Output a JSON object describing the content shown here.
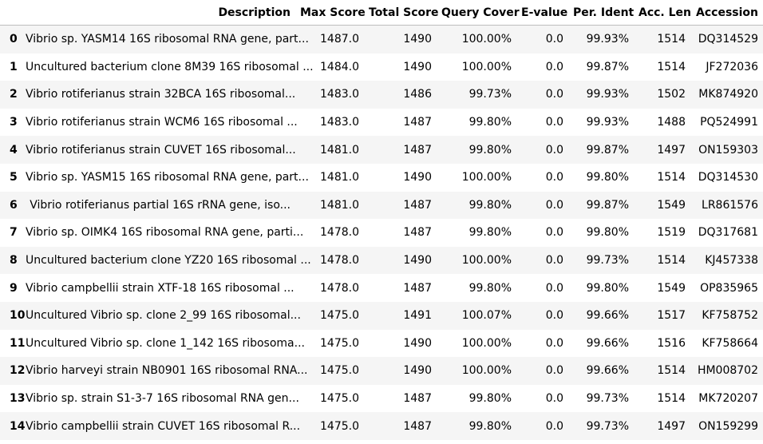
{
  "table": {
    "columns": [
      "",
      "Description",
      "Max Score",
      "Total Score",
      "Query Cover",
      "E-value",
      "Per. Ident",
      "Acc. Len",
      "Accession"
    ],
    "rows": [
      {
        "index": "0",
        "description": "Vibrio sp. YASM14 16S ribosomal RNA gene, part...",
        "max_score": "1487.0",
        "total_score": "1490",
        "query_cover": "100.00%",
        "evalue": "0.0",
        "per_ident": "99.93%",
        "acc_len": "1514",
        "accession": "DQ314529"
      },
      {
        "index": "1",
        "description": "Uncultured bacterium clone 8M39 16S ribosomal ...",
        "max_score": "1484.0",
        "total_score": "1490",
        "query_cover": "100.00%",
        "evalue": "0.0",
        "per_ident": "99.87%",
        "acc_len": "1514",
        "accession": "JF272036"
      },
      {
        "index": "2",
        "description": "Vibrio rotiferianus strain 32BCA 16S ribosomal...",
        "max_score": "1483.0",
        "total_score": "1486",
        "query_cover": "99.73%",
        "evalue": "0.0",
        "per_ident": "99.93%",
        "acc_len": "1502",
        "accession": "MK874920"
      },
      {
        "index": "3",
        "description": "Vibrio rotiferianus strain WCM6 16S ribosomal ...",
        "max_score": "1483.0",
        "total_score": "1487",
        "query_cover": "99.80%",
        "evalue": "0.0",
        "per_ident": "99.93%",
        "acc_len": "1488",
        "accession": "PQ524991"
      },
      {
        "index": "4",
        "description": "Vibrio rotiferianus strain CUVET 16S ribosomal...",
        "max_score": "1481.0",
        "total_score": "1487",
        "query_cover": "99.80%",
        "evalue": "0.0",
        "per_ident": "99.87%",
        "acc_len": "1497",
        "accession": "ON159303"
      },
      {
        "index": "5",
        "description": "Vibrio sp. YASM15 16S ribosomal RNA gene, part...",
        "max_score": "1481.0",
        "total_score": "1490",
        "query_cover": "100.00%",
        "evalue": "0.0",
        "per_ident": "99.80%",
        "acc_len": "1514",
        "accession": "DQ314530"
      },
      {
        "index": "6",
        "description": "Vibrio rotiferianus partial 16S rRNA gene, iso...",
        "max_score": "1481.0",
        "total_score": "1487",
        "query_cover": "99.80%",
        "evalue": "0.0",
        "per_ident": "99.87%",
        "acc_len": "1549",
        "accession": "LR861576"
      },
      {
        "index": "7",
        "description": "Vibrio sp. OIMK4 16S ribosomal RNA gene, parti...",
        "max_score": "1478.0",
        "total_score": "1487",
        "query_cover": "99.80%",
        "evalue": "0.0",
        "per_ident": "99.80%",
        "acc_len": "1519",
        "accession": "DQ317681"
      },
      {
        "index": "8",
        "description": "Uncultured bacterium clone YZ20 16S ribosomal ...",
        "max_score": "1478.0",
        "total_score": "1490",
        "query_cover": "100.00%",
        "evalue": "0.0",
        "per_ident": "99.73%",
        "acc_len": "1514",
        "accession": "KJ457338"
      },
      {
        "index": "9",
        "description": "Vibrio campbellii strain XTF-18 16S ribosomal ...",
        "max_score": "1478.0",
        "total_score": "1487",
        "query_cover": "99.80%",
        "evalue": "0.0",
        "per_ident": "99.80%",
        "acc_len": "1549",
        "accession": "OP835965"
      },
      {
        "index": "10",
        "description": "Uncultured Vibrio sp. clone 2_99 16S ribosomal...",
        "max_score": "1475.0",
        "total_score": "1491",
        "query_cover": "100.07%",
        "evalue": "0.0",
        "per_ident": "99.66%",
        "acc_len": "1517",
        "accession": "KF758752"
      },
      {
        "index": "11",
        "description": "Uncultured Vibrio sp. clone 1_142 16S ribosoma...",
        "max_score": "1475.0",
        "total_score": "1490",
        "query_cover": "100.00%",
        "evalue": "0.0",
        "per_ident": "99.66%",
        "acc_len": "1516",
        "accession": "KF758664"
      },
      {
        "index": "12",
        "description": "Vibrio harveyi strain NB0901 16S ribosomal RNA...",
        "max_score": "1475.0",
        "total_score": "1490",
        "query_cover": "100.00%",
        "evalue": "0.0",
        "per_ident": "99.66%",
        "acc_len": "1514",
        "accession": "HM008702"
      },
      {
        "index": "13",
        "description": "Vibrio sp. strain S1-3-7 16S ribosomal RNA gen...",
        "max_score": "1475.0",
        "total_score": "1487",
        "query_cover": "99.80%",
        "evalue": "0.0",
        "per_ident": "99.73%",
        "acc_len": "1514",
        "accession": "MK720207"
      },
      {
        "index": "14",
        "description": "Vibrio campbellii strain CUVET 16S ribosomal R...",
        "max_score": "1475.0",
        "total_score": "1487",
        "query_cover": "99.80%",
        "evalue": "0.0",
        "per_ident": "99.73%",
        "acc_len": "1497",
        "accession": "ON159299"
      }
    ]
  }
}
